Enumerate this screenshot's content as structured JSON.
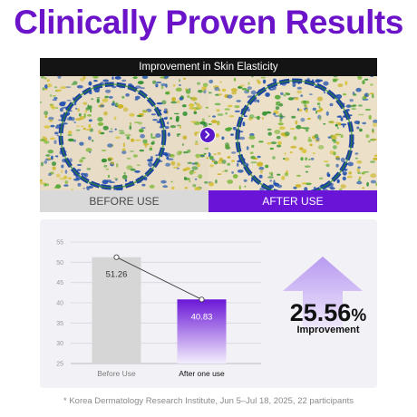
{
  "page_title": "Clinically Proven Results",
  "photo_section": {
    "banner": "Improvement in Skin Elasticity",
    "before_caption": "BEFORE USE",
    "after_caption": "AFTER USE"
  },
  "chart_data": {
    "type": "bar",
    "categories": [
      "Before Use",
      "After one use"
    ],
    "values": [
      51.26,
      40.83
    ],
    "value_labels": [
      "51.26",
      "40.83"
    ],
    "ylim": [
      25,
      55
    ],
    "yticks": [
      55,
      50,
      45,
      40,
      35,
      30,
      25
    ],
    "grid": true,
    "trend_line": true,
    "colors": {
      "before": "#d6d6d6",
      "after_top": "#6a16d6",
      "after_bottom": "#f3eefc"
    }
  },
  "result": {
    "value": "25.56",
    "unit": "%",
    "label": "Improvement"
  },
  "footnote": "* Korea Dermatology Research Institute, Jun 5–Jul 18, 2025, 22 participants",
  "colors": {
    "brand": "#6b13c9",
    "accent": "#6a14d8"
  },
  "icons": {
    "next": "chevron-right-icon",
    "increase": "up-arrow-icon"
  }
}
